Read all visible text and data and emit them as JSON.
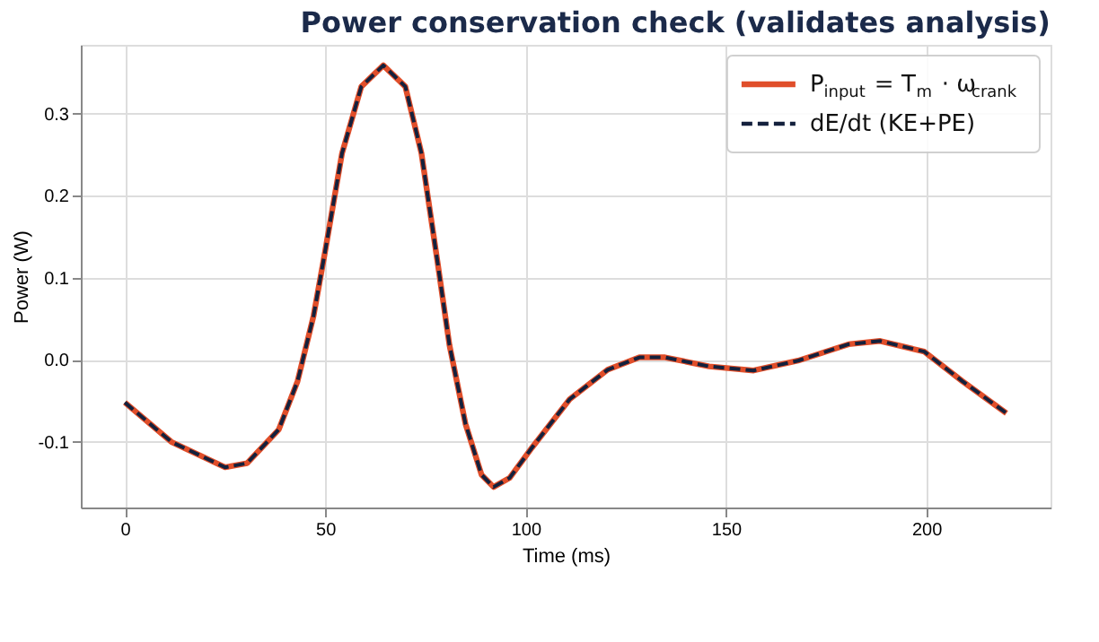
{
  "chart_data": {
    "type": "line",
    "title": "Power conservation check (validates analysis)",
    "xlabel": "Time (ms)",
    "ylabel": "Power (W)",
    "x": [
      0,
      11.6,
      25,
      30.5,
      38.4,
      43.1,
      47.1,
      50,
      54.2,
      59,
      64.5,
      70,
      74,
      78,
      81,
      85,
      89,
      92,
      96,
      101.6,
      111,
      120.5,
      128.4,
      134.8,
      145.8,
      156.9,
      168,
      180.6,
      188.5,
      199.5,
      209,
      220
    ],
    "series": [
      {
        "name": "P$_{input}$ = T$_{m}$ · ω$_{crank}$",
        "color": "#e04e2a",
        "line_style": "solid",
        "values": [
          -0.052,
          -0.1,
          -0.131,
          -0.126,
          -0.085,
          -0.026,
          0.054,
          0.133,
          0.252,
          0.333,
          0.359,
          0.333,
          0.252,
          0.12,
          0.018,
          -0.078,
          -0.14,
          -0.155,
          -0.144,
          -0.107,
          -0.048,
          -0.012,
          0.003,
          0.003,
          -0.008,
          -0.013,
          -0.001,
          0.019,
          0.023,
          0.01,
          -0.026,
          -0.065
        ]
      },
      {
        "name": "dE/dt (KE+PE)",
        "color": "#14213d",
        "line_style": "dashed",
        "values": [
          -0.052,
          -0.1,
          -0.131,
          -0.126,
          -0.085,
          -0.026,
          0.054,
          0.133,
          0.252,
          0.333,
          0.359,
          0.333,
          0.252,
          0.12,
          0.018,
          -0.078,
          -0.14,
          -0.155,
          -0.144,
          -0.107,
          -0.048,
          -0.012,
          0.003,
          0.003,
          -0.008,
          -0.013,
          -0.001,
          0.019,
          0.023,
          0.01,
          -0.026,
          -0.065
        ]
      }
    ],
    "xlim": [
      -11,
      231
    ],
    "xticks": [
      0,
      50,
      100,
      150,
      200
    ],
    "ylim": [
      -0.18,
      0.384
    ],
    "yticks": [
      -0.1,
      {
        "value": 0,
        "label": "0.0"
      },
      0.1,
      0.2,
      0.3
    ],
    "grid": true,
    "legend": "top right",
    "marker": "none"
  }
}
